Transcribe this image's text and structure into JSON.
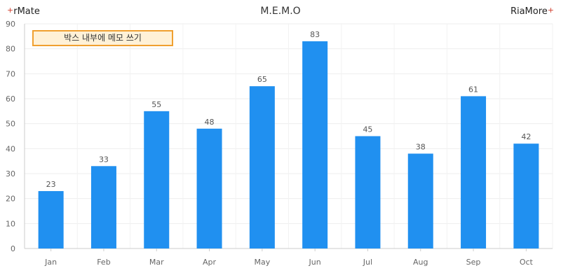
{
  "brand": {
    "left": "rMate",
    "right": "RiaMore",
    "plus": "+"
  },
  "chart_data": {
    "type": "bar",
    "title": "M.E.M.O",
    "categories": [
      "Jan",
      "Feb",
      "Mar",
      "Apr",
      "May",
      "Jun",
      "Jul",
      "Aug",
      "Sep",
      "Oct"
    ],
    "values": [
      23,
      33,
      55,
      48,
      65,
      83,
      45,
      38,
      61,
      42
    ],
    "ylim": [
      0,
      90
    ],
    "yticks": [
      0,
      10,
      20,
      30,
      40,
      50,
      60,
      70,
      80,
      90
    ],
    "grid": true,
    "legend": "none",
    "bar_color": "#2090f0",
    "memo": "박스 내부에 메모 쓰기"
  }
}
